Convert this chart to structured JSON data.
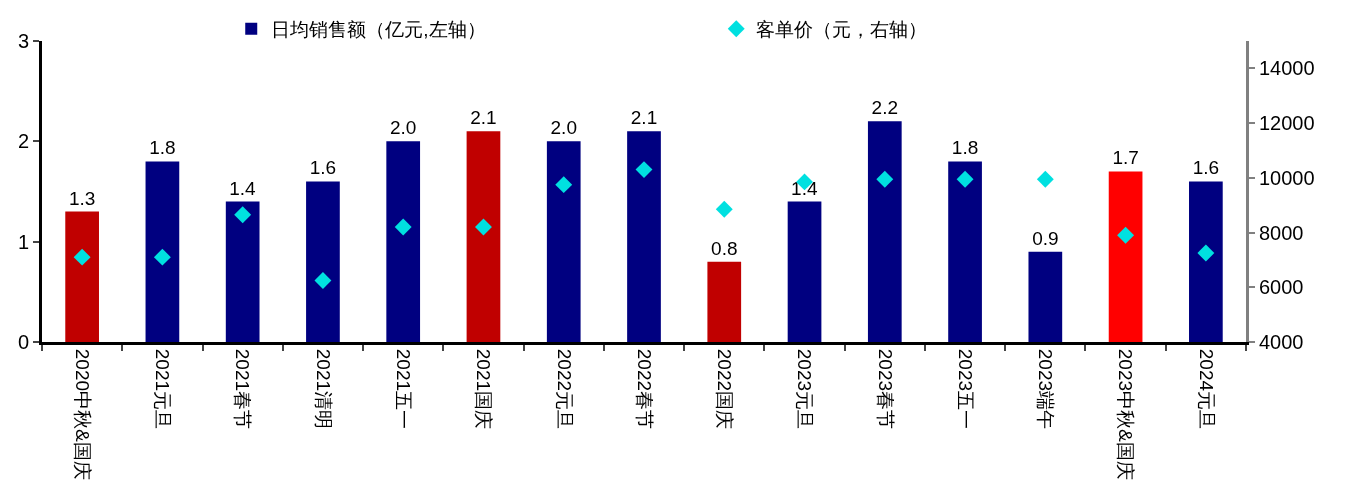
{
  "chart_data": {
    "type": "bar",
    "categories": [
      "2020中秋&国庆",
      "2021元旦",
      "2021春节",
      "2021清明",
      "2021五一",
      "2021国庆",
      "2022元旦",
      "2022春节",
      "2022国庆",
      "2023元旦",
      "2023春节",
      "2023五一",
      "2023端午",
      "2023中秋&国庆",
      "2024元旦"
    ],
    "series": [
      {
        "name": "日均销售额（亿元,左轴）",
        "color": "#000080",
        "colors": [
          "#c00000",
          "#000080",
          "#000080",
          "#000080",
          "#000080",
          "#c00000",
          "#000080",
          "#000080",
          "#c00000",
          "#000080",
          "#000080",
          "#000080",
          "#000080",
          "#ff0000",
          "#000080"
        ],
        "values": [
          1.3,
          1.8,
          1.4,
          1.6,
          2.0,
          2.1,
          2.0,
          2.1,
          0.8,
          1.4,
          2.2,
          1.8,
          0.9,
          1.7,
          1.6
        ],
        "value_labels": [
          "1.3",
          "1.8",
          "1.4",
          "1.6",
          "2.0",
          "2.1",
          "2.0",
          "2.1",
          "0.8",
          "1.4",
          "2.2",
          "1.8",
          "0.9",
          "1.7",
          "1.6"
        ]
      },
      {
        "name": "客单价（元，右轴）",
        "type": "scatter",
        "axis": "y2",
        "color": "#00e0e0",
        "marker": "diamond",
        "values": [
          7100,
          7100,
          8650,
          6250,
          8200,
          8200,
          9750,
          10300,
          8850,
          9850,
          9950,
          9950,
          9950,
          7900,
          7250
        ]
      }
    ],
    "ylim": [
      0,
      3
    ],
    "yticks": [
      0,
      1,
      2,
      3
    ],
    "y2lim": [
      4000,
      15000
    ],
    "y2ticks": [
      4000,
      6000,
      8000,
      10000,
      12000,
      14000
    ],
    "legend": "top"
  }
}
